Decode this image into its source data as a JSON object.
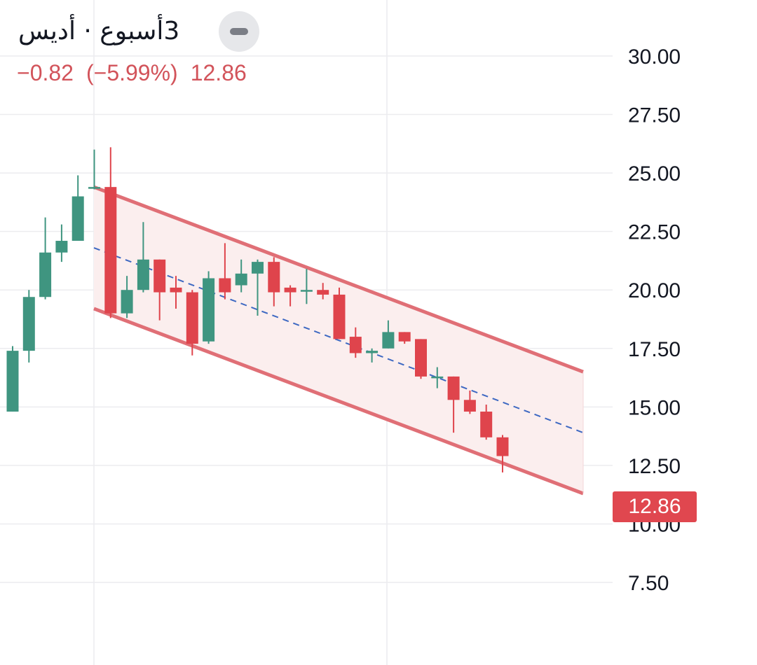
{
  "header": {
    "title": "3أسبوع · أديس",
    "change": "−0.82",
    "change_pct": "(−5.99%)",
    "last_price": "12.86"
  },
  "colors": {
    "up": "#3f9580",
    "down": "#df444c",
    "channel": "#e06f76",
    "channel_fill": "#fbeeee",
    "midline": "#3d68c2",
    "grid": "#ececef"
  },
  "chart_data": {
    "type": "candlestick",
    "y_axis": {
      "min": 7.5,
      "max": 30,
      "ticks": [
        "30.00",
        "27.50",
        "25.00",
        "22.50",
        "20.00",
        "17.50",
        "15.00",
        "12.50",
        "10.00",
        "7.50"
      ]
    },
    "candles": [
      {
        "o": 14.8,
        "h": 17.6,
        "l": 14.8,
        "c": 17.4
      },
      {
        "o": 17.4,
        "h": 20.0,
        "l": 16.9,
        "c": 19.7
      },
      {
        "o": 19.7,
        "h": 23.1,
        "l": 19.6,
        "c": 21.6
      },
      {
        "o": 21.6,
        "h": 22.8,
        "l": 21.2,
        "c": 22.1
      },
      {
        "o": 22.1,
        "h": 24.9,
        "l": 22.1,
        "c": 24.0
      },
      {
        "o": 24.4,
        "h": 26.0,
        "l": 24.3,
        "c": 24.4
      },
      {
        "o": 24.4,
        "h": 26.1,
        "l": 18.8,
        "c": 19.0
      },
      {
        "o": 19.0,
        "h": 20.6,
        "l": 18.8,
        "c": 20.0
      },
      {
        "o": 20.0,
        "h": 22.9,
        "l": 19.9,
        "c": 21.3
      },
      {
        "o": 21.3,
        "h": 21.3,
        "l": 18.7,
        "c": 19.9
      },
      {
        "o": 20.1,
        "h": 20.6,
        "l": 19.2,
        "c": 19.9
      },
      {
        "o": 19.9,
        "h": 20.0,
        "l": 17.2,
        "c": 17.7
      },
      {
        "o": 17.8,
        "h": 20.8,
        "l": 17.7,
        "c": 20.5
      },
      {
        "o": 20.5,
        "h": 22.0,
        "l": 19.6,
        "c": 19.9
      },
      {
        "o": 20.2,
        "h": 21.3,
        "l": 19.9,
        "c": 20.7
      },
      {
        "o": 20.7,
        "h": 21.3,
        "l": 18.9,
        "c": 21.2
      },
      {
        "o": 21.2,
        "h": 21.4,
        "l": 19.3,
        "c": 19.9
      },
      {
        "o": 20.1,
        "h": 20.2,
        "l": 19.3,
        "c": 19.9
      },
      {
        "o": 20.0,
        "h": 20.9,
        "l": 19.4,
        "c": 20.0
      },
      {
        "o": 20.0,
        "h": 20.3,
        "l": 19.6,
        "c": 19.8
      },
      {
        "o": 19.8,
        "h": 20.1,
        "l": 17.9,
        "c": 17.9
      },
      {
        "o": 18.0,
        "h": 18.4,
        "l": 17.1,
        "c": 17.3
      },
      {
        "o": 17.3,
        "h": 17.5,
        "l": 16.9,
        "c": 17.4
      },
      {
        "o": 17.5,
        "h": 18.7,
        "l": 17.5,
        "c": 18.2
      },
      {
        "o": 18.2,
        "h": 18.2,
        "l": 17.7,
        "c": 17.8
      },
      {
        "o": 17.9,
        "h": 17.9,
        "l": 16.2,
        "c": 16.3
      },
      {
        "o": 16.3,
        "h": 16.7,
        "l": 15.8,
        "c": 16.3
      },
      {
        "o": 16.3,
        "h": 16.3,
        "l": 13.9,
        "c": 15.3
      },
      {
        "o": 15.3,
        "h": 15.7,
        "l": 14.7,
        "c": 14.8
      },
      {
        "o": 14.8,
        "h": 15.1,
        "l": 13.6,
        "c": 13.7
      },
      {
        "o": 13.7,
        "h": 13.8,
        "l": 12.2,
        "c": 12.9
      }
    ],
    "channel": {
      "upper": {
        "start": 24.4,
        "end": 16.5
      },
      "middle": {
        "start": 21.8,
        "end": 13.9
      },
      "lower": {
        "start": 19.2,
        "end": 11.3
      }
    },
    "last_price": 12.86
  }
}
